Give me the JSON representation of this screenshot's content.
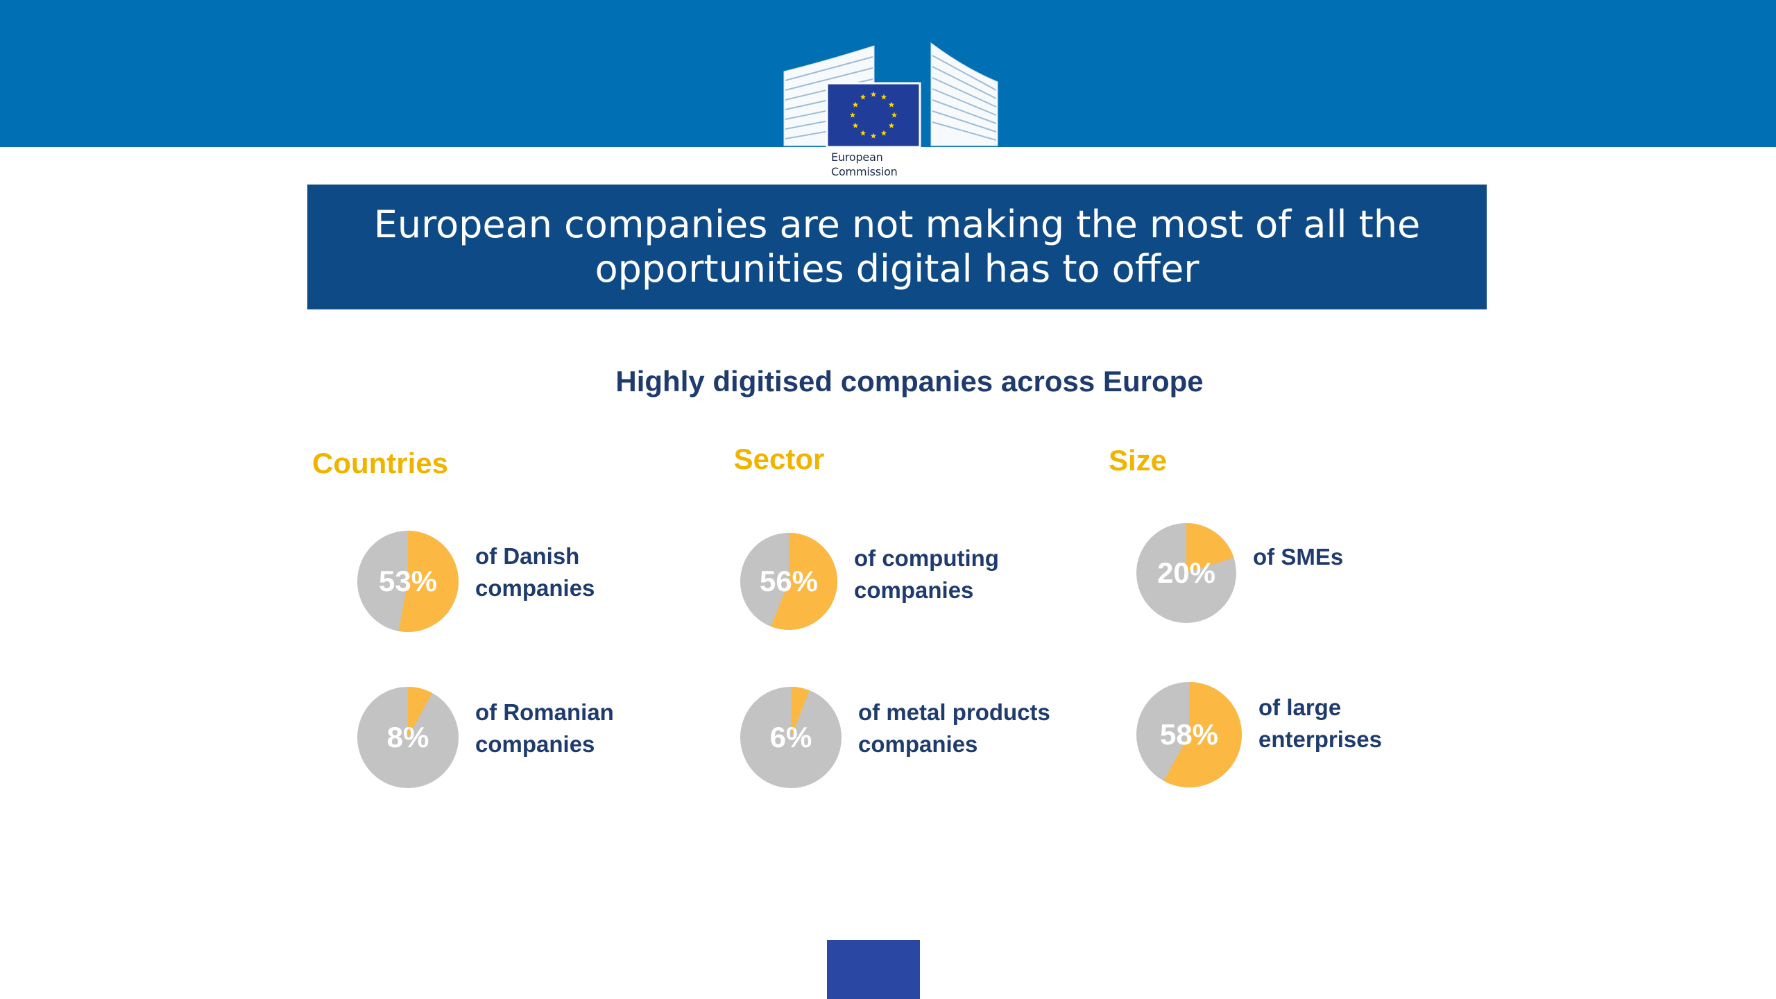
{
  "header": {
    "logo_name": "European Commission",
    "logo_line1": "European",
    "logo_line2": "Commission"
  },
  "title": "European companies are not making the most of all the opportunities digital has to offer",
  "colors": {
    "band": "#006fb4",
    "title_box": "#0e4a86",
    "accent": "#f0b400",
    "pie_fill": "#fbb843",
    "pie_rest": "#c3c3c3",
    "text_dark": "#1f3b6e"
  },
  "chart_data": {
    "type": "pie",
    "title": "Highly digitised companies across Europe",
    "groups": [
      {
        "name": "Countries",
        "items": [
          {
            "value": 53,
            "display": "53%",
            "label_lines": [
              "of Danish",
              "companies"
            ]
          },
          {
            "value": 8,
            "display": "8%",
            "label_lines": [
              "of Romanian",
              "companies"
            ]
          }
        ]
      },
      {
        "name": "Sector",
        "items": [
          {
            "value": 56,
            "display": "56%",
            "label_lines": [
              "of computing",
              "companies"
            ]
          },
          {
            "value": 6,
            "display": "6%",
            "label_lines": [
              "of metal products",
              "companies"
            ]
          }
        ]
      },
      {
        "name": "Size",
        "items": [
          {
            "value": 20,
            "display": "20%",
            "label_lines": [
              "of SMEs"
            ]
          },
          {
            "value": 58,
            "display": "58%",
            "label_lines": [
              "of large",
              "enterprises"
            ]
          }
        ]
      }
    ]
  }
}
